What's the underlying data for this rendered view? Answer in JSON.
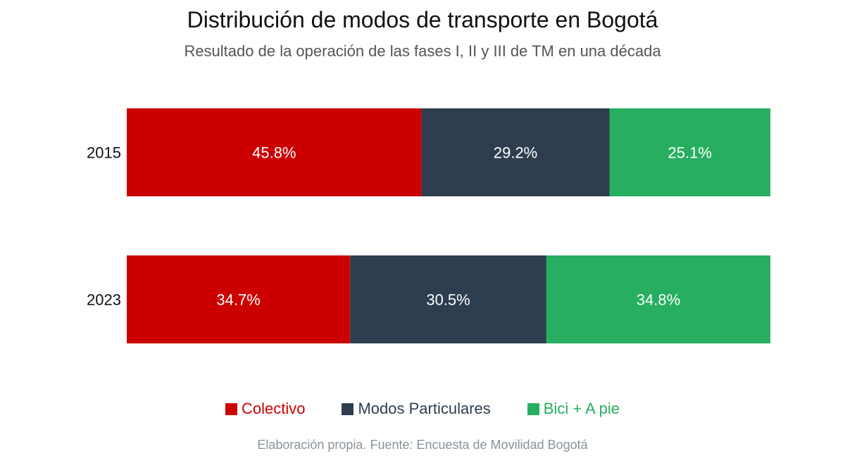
{
  "chart_data": {
    "type": "bar",
    "orientation": "horizontal",
    "stacked": true,
    "title": "Distribución de modos de transporte en Bogotá",
    "subtitle": "Resultado de la operación de las fases I, II y III de TM en una década",
    "categories": [
      "2015",
      "2023"
    ],
    "series": [
      {
        "name": "Colectivo",
        "color": "#CC0000",
        "values": [
          45.8,
          34.7
        ],
        "labels": [
          "45.8%",
          "34.7%"
        ]
      },
      {
        "name": "Modos Particulares",
        "color": "#2E3E50",
        "values": [
          29.2,
          30.5
        ],
        "labels": [
          "29.2%",
          "30.5%"
        ]
      },
      {
        "name": "Bici + A pie",
        "color": "#27AE60",
        "values": [
          25.1,
          34.8
        ],
        "labels": [
          "25.1%",
          "34.8%"
        ]
      }
    ],
    "xlim": [
      0,
      100
    ],
    "grid": false,
    "legend": "bottom",
    "source": "Elaboración propia. Fuente: Encuesta de Movilidad Bogotá"
  }
}
